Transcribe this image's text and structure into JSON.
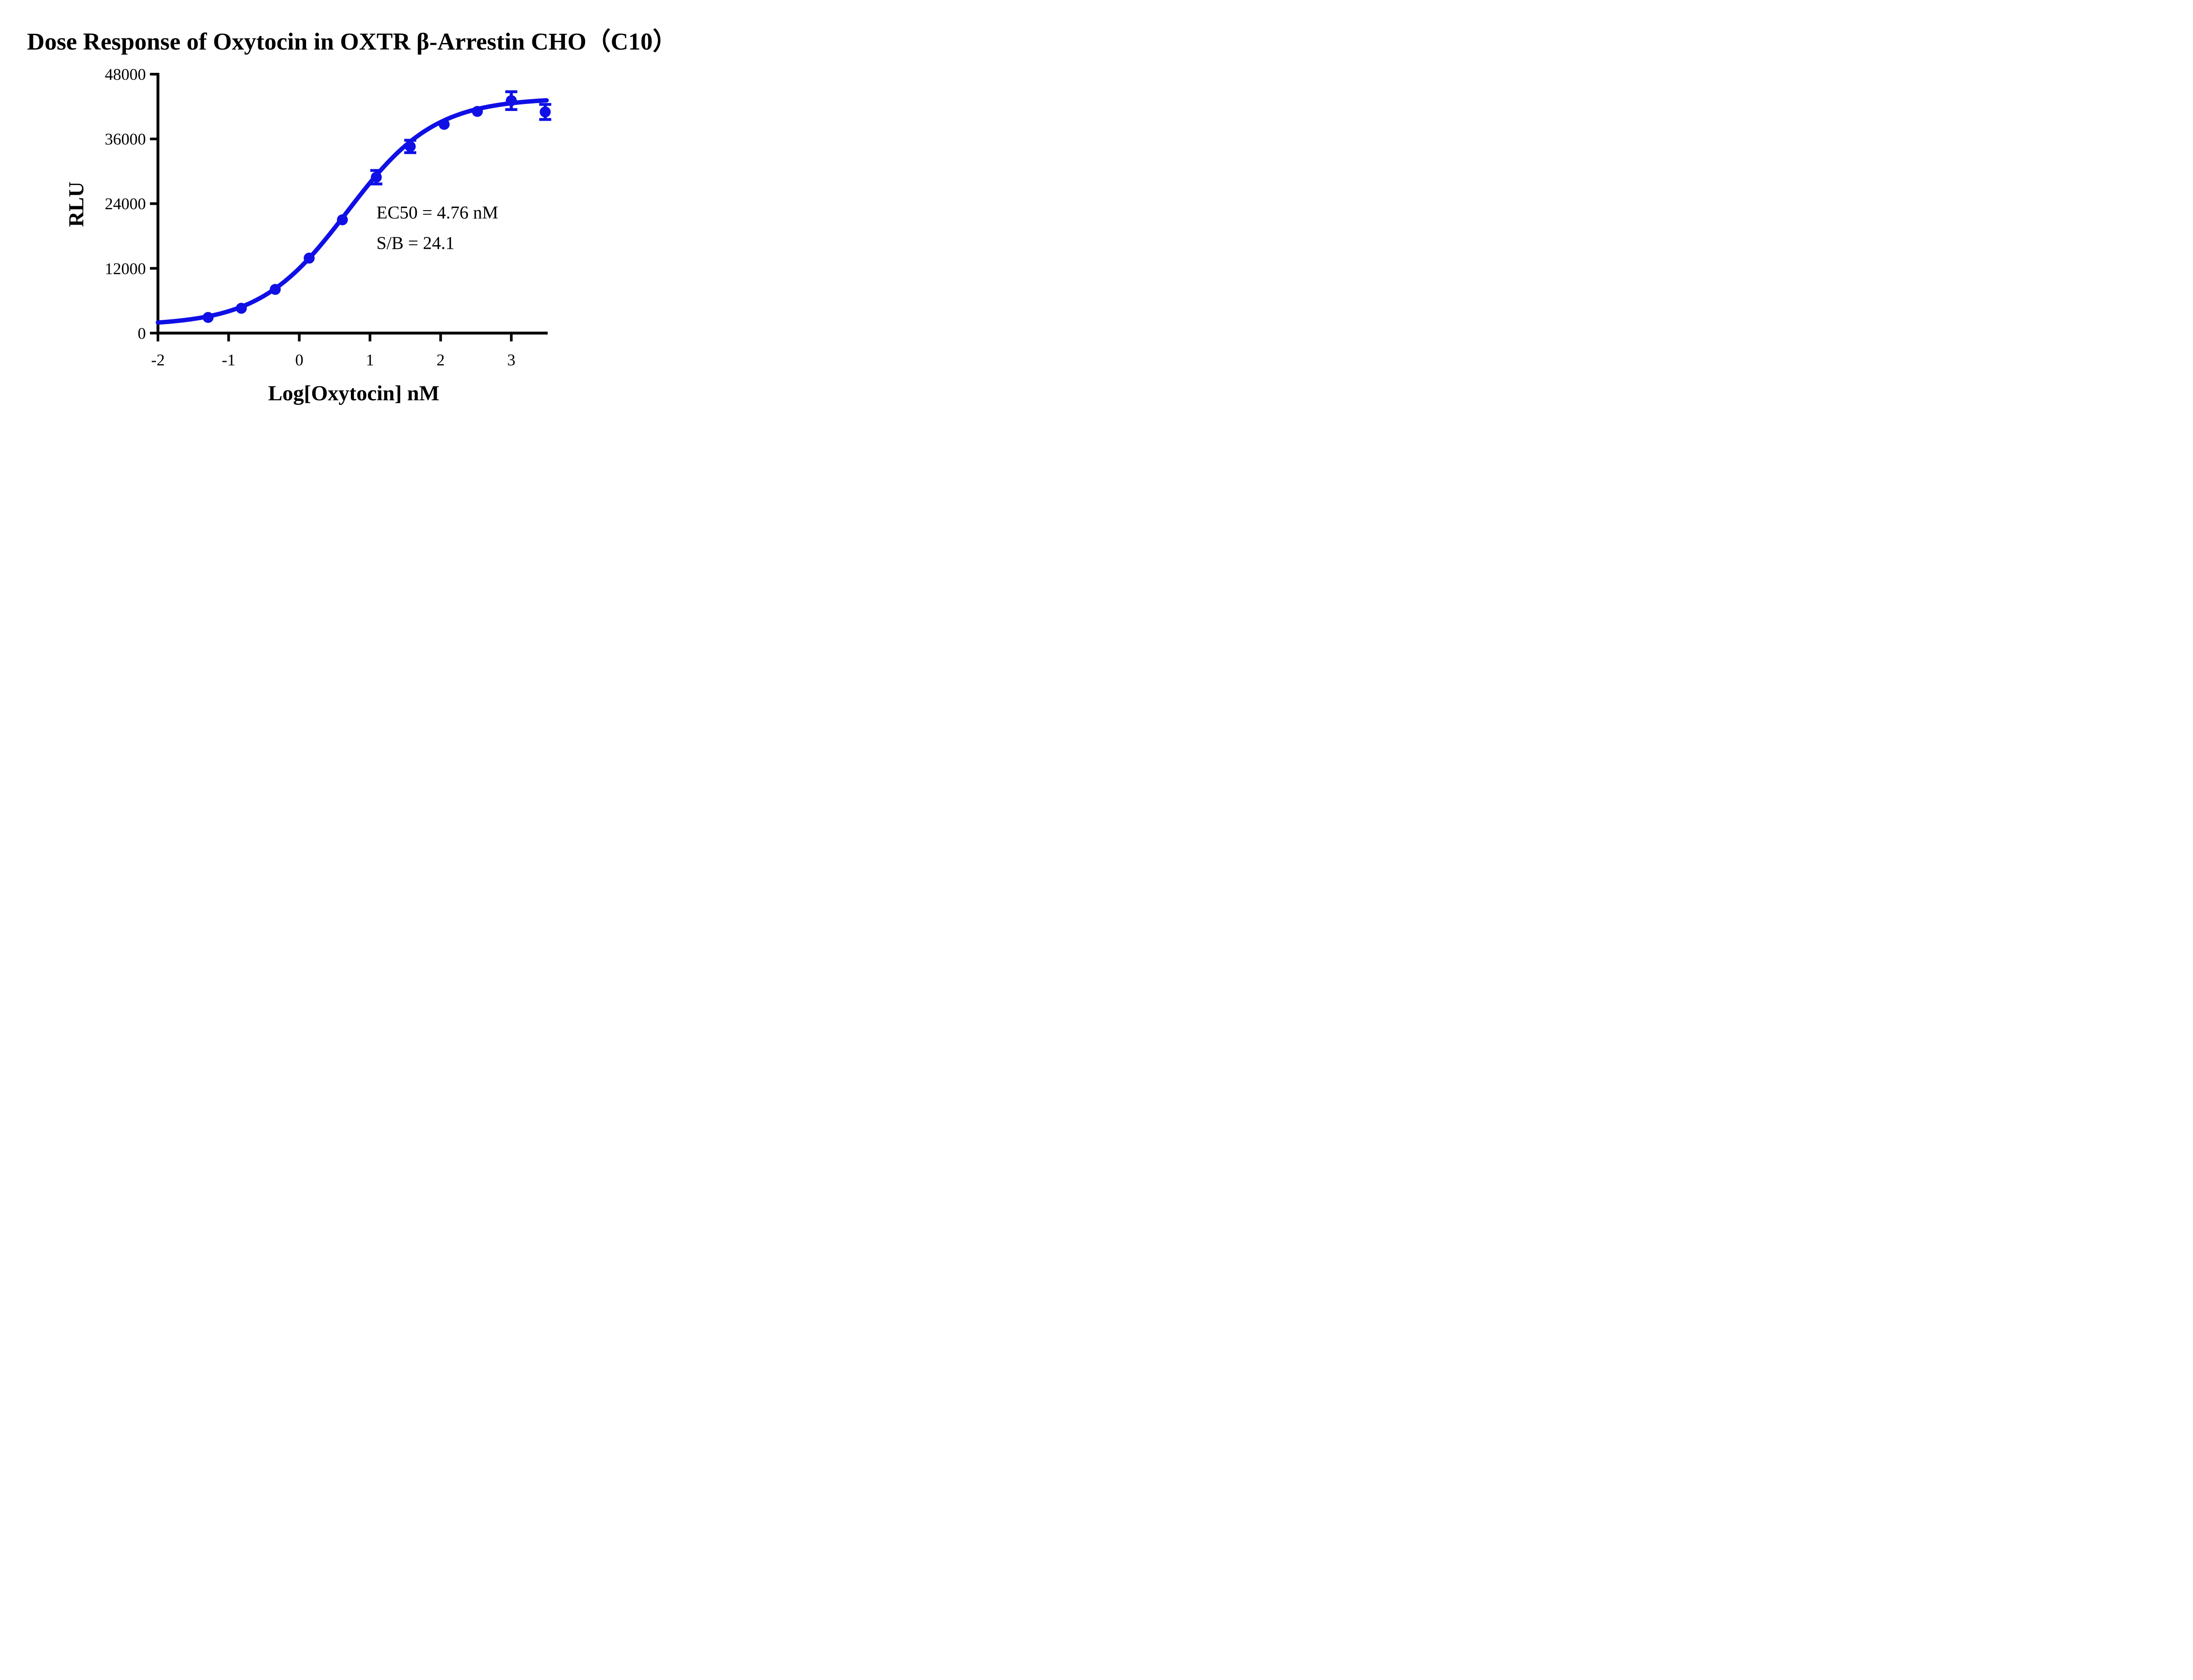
{
  "chart": {
    "title": "Dose Response of Oxytocin  in OXTR  β-Arrestin CHO（C10）",
    "ylabel": "RLU",
    "xlabel": "Log[Oxytocin] nM",
    "annotation": {
      "line1": "EC50 = 4.76 nM",
      "line2": "S/B = 24.1"
    },
    "accent_color": "#0f0fe6"
  },
  "chart_data": {
    "type": "scatter",
    "title": "Dose Response of Oxytocin  in OXTR  β-Arrestin CHO（C10）",
    "xlabel": "Log[Oxytocin] nM",
    "ylabel": "RLU",
    "xlim": [
      -2,
      3.52
    ],
    "ylim": [
      0,
      48000
    ],
    "xticks": [
      -2,
      -1,
      0,
      1,
      2,
      3
    ],
    "yticks": [
      0,
      12000,
      24000,
      36000,
      48000
    ],
    "grid": false,
    "legend": false,
    "series": [
      {
        "name": "Oxytocin",
        "x": [
          -1.29,
          -0.82,
          -0.34,
          0.14,
          0.61,
          1.09,
          1.57,
          2.05,
          2.52,
          3.0,
          3.48
        ],
        "y": [
          2900,
          4600,
          8100,
          13900,
          21000,
          28900,
          34600,
          38700,
          41100,
          43100,
          41000
        ],
        "yerr": [
          null,
          null,
          null,
          null,
          null,
          1250,
          1150,
          null,
          null,
          1650,
          1400
        ]
      }
    ],
    "fit": {
      "model": "4PL",
      "bottom": 1400,
      "top": 43600,
      "hill": 0.7,
      "log_ec50": 0.678,
      "ec50_nM": 4.76,
      "s_over_b": 24.1
    },
    "annotations": [
      "EC50 = 4.76 nM",
      "S/B = 24.1"
    ]
  }
}
